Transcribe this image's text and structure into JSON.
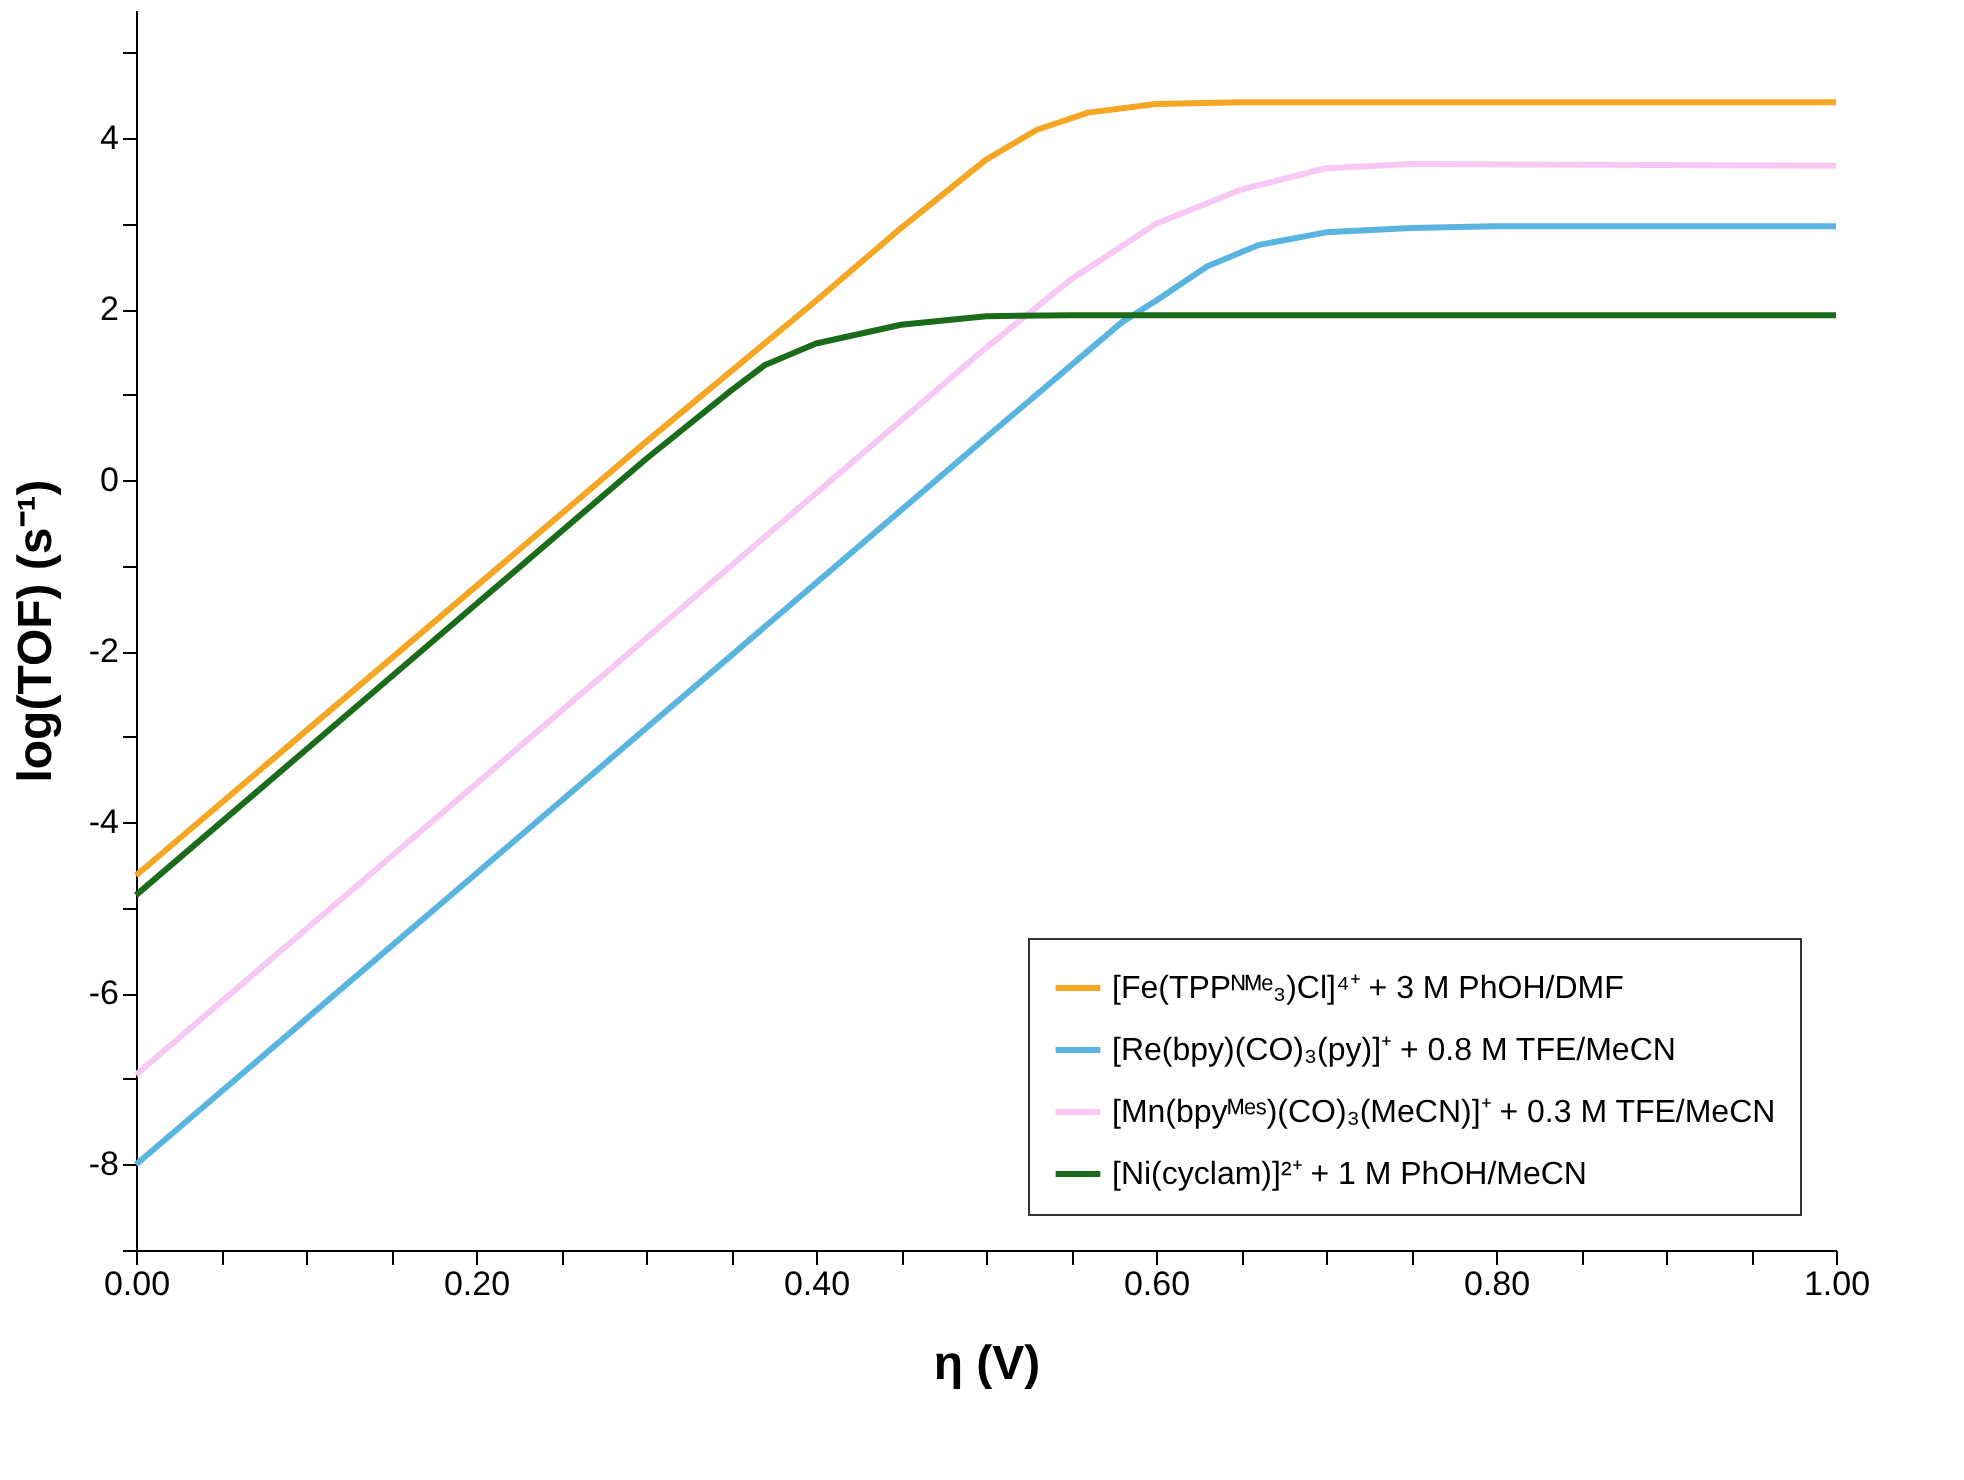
{
  "chart_data": {
    "type": "line",
    "xlabel": "η (V)",
    "ylabel": "log(TOF) (s⁻¹)",
    "xlim": [
      0,
      1
    ],
    "ylim": [
      -9,
      5.5
    ],
    "xticks": [
      {
        "value": 0,
        "label": "0.00"
      },
      {
        "value": 0.05,
        "label": null
      },
      {
        "value": 0.1,
        "label": null
      },
      {
        "value": 0.15,
        "label": null
      },
      {
        "value": 0.2,
        "label": "0.20"
      },
      {
        "value": 0.25,
        "label": null
      },
      {
        "value": 0.3,
        "label": null
      },
      {
        "value": 0.35,
        "label": null
      },
      {
        "value": 0.4,
        "label": "0.40"
      },
      {
        "value": 0.45,
        "label": null
      },
      {
        "value": 0.5,
        "label": null
      },
      {
        "value": 0.55,
        "label": null
      },
      {
        "value": 0.6,
        "label": "0.60"
      },
      {
        "value": 0.65,
        "label": null
      },
      {
        "value": 0.7,
        "label": null
      },
      {
        "value": 0.75,
        "label": null
      },
      {
        "value": 0.8,
        "label": "0.80"
      },
      {
        "value": 0.85,
        "label": null
      },
      {
        "value": 0.9,
        "label": null
      },
      {
        "value": 0.95,
        "label": null
      },
      {
        "value": 1,
        "label": "1.00"
      }
    ],
    "yticks": [
      {
        "value": -9,
        "label": null
      },
      -8,
      {
        "value": -7,
        "label": null
      },
      -6,
      {
        "value": -5,
        "label": null
      },
      -4,
      {
        "value": -3,
        "label": null
      },
      -2,
      {
        "value": -1,
        "label": null
      },
      0,
      {
        "value": 1,
        "label": null
      },
      2,
      {
        "value": 3,
        "label": null
      },
      4,
      {
        "value": 5,
        "label": null
      }
    ],
    "grid": false,
    "legend": "bottom right",
    "marker": "none",
    "line_style": "solid",
    "series": [
      {
        "name": "[Fe(TPPᴺᴹᵉ₃)Cl]⁴⁺ + 3 M PhOH/DMF",
        "color": "#f5a623",
        "x": [
          0,
          0.1,
          0.2,
          0.3,
          0.4,
          0.45,
          0.5,
          0.53,
          0.56,
          0.6,
          0.65,
          1.0
        ],
        "values": [
          -4.62,
          -2.93,
          -1.24,
          0.45,
          2.1,
          2.95,
          3.75,
          4.1,
          4.3,
          4.4,
          4.42,
          4.42
        ]
      },
      {
        "name": "[Re(bpy)(CO)₃(py)]⁺ + 0.8 M TFE/MeCN",
        "color": "#5ab4e0",
        "x": [
          0,
          0.1,
          0.2,
          0.3,
          0.4,
          0.5,
          0.58,
          0.6,
          0.63,
          0.66,
          0.7,
          0.75,
          0.8,
          1.0
        ],
        "values": [
          -8.0,
          -6.3,
          -4.6,
          -2.9,
          -1.2,
          0.5,
          1.85,
          2.1,
          2.5,
          2.75,
          2.9,
          2.95,
          2.97,
          2.97
        ]
      },
      {
        "name": "[Mn(bpyᴹᵉˢ)(CO)₃(MeCN)]⁺ + 0.3 M TFE/MeCN",
        "color": "#f8c8f4",
        "x": [
          0,
          0.1,
          0.2,
          0.3,
          0.4,
          0.5,
          0.55,
          0.6,
          0.65,
          0.7,
          0.75,
          1.0
        ],
        "values": [
          -6.95,
          -5.25,
          -3.55,
          -1.85,
          -0.15,
          1.55,
          2.35,
          3.0,
          3.4,
          3.65,
          3.7,
          3.68
        ]
      },
      {
        "name": "[Ni(cyclam)]²⁺ + 1 M PhOH/MeCN",
        "color": "#1a6b1a",
        "x": [
          0,
          0.1,
          0.2,
          0.3,
          0.35,
          0.37,
          0.4,
          0.45,
          0.5,
          0.55,
          1.0
        ],
        "values": [
          -4.85,
          -3.15,
          -1.45,
          0.25,
          1.05,
          1.35,
          1.6,
          1.82,
          1.92,
          1.93,
          1.93
        ]
      }
    ]
  }
}
